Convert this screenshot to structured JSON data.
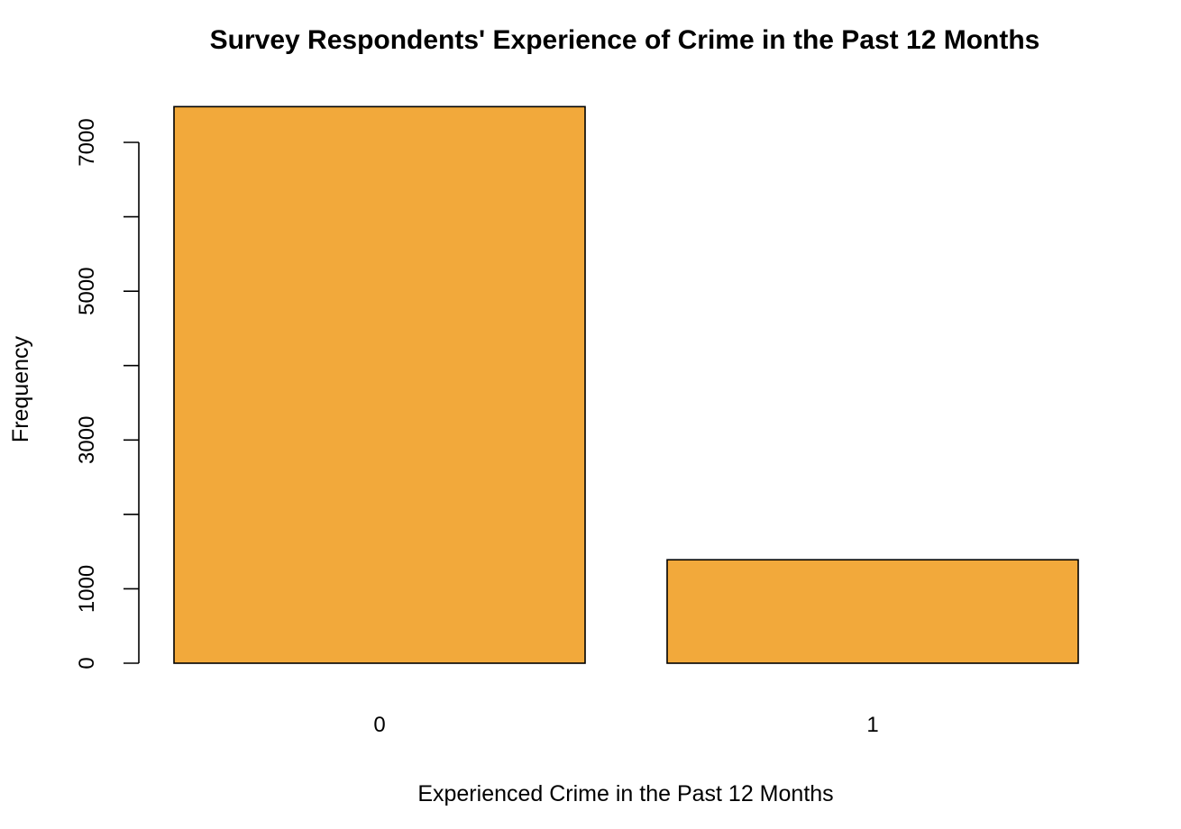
{
  "chart_data": {
    "type": "bar",
    "title": "Survey Respondents' Experience of Crime in the Past 12 Months",
    "xlabel": "Experienced Crime in the Past 12 Months",
    "ylabel": "Frequency",
    "categories": [
      "0",
      "1"
    ],
    "values": [
      7480,
      1390
    ],
    "ylim": [
      0,
      7500
    ],
    "yticks": [
      0,
      1000,
      2000,
      3000,
      4000,
      5000,
      6000,
      7000
    ],
    "ytick_labels": [
      "0",
      "1000",
      "",
      "3000",
      "",
      "5000",
      "",
      "7000"
    ],
    "bar_color": "#F2A93B",
    "grid": false,
    "legend": "none"
  }
}
